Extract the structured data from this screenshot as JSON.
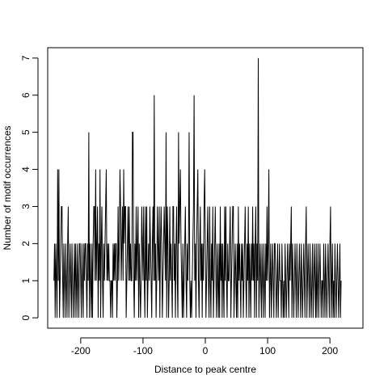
{
  "chart_data": {
    "type": "line",
    "title": "",
    "xlabel": "Distance to peak centre",
    "ylabel": "Number of motif occurrences",
    "xlim": [
      -253,
      253
    ],
    "ylim": [
      -0.28,
      7.28
    ],
    "x_ticks": [
      -200,
      -100,
      0,
      100,
      200
    ],
    "x_tick_labels": [
      "-200",
      "-100",
      "0",
      "100",
      "200"
    ],
    "y_ticks": [
      0,
      1,
      2,
      3,
      4,
      5,
      6,
      7
    ],
    "y_tick_labels": [
      "0",
      "1",
      "2",
      "3",
      "4",
      "5",
      "6",
      "7"
    ],
    "grid": false,
    "legend": "none",
    "line_color": "#000000",
    "x_start": -243,
    "x_step": 1,
    "series": [
      {
        "values": [
          1,
          2,
          0,
          2,
          1,
          0,
          4,
          1,
          4,
          0,
          1,
          2,
          3,
          3,
          1,
          0,
          2,
          1,
          0,
          2,
          1,
          0,
          2,
          3,
          0,
          1,
          2,
          1,
          0,
          2,
          1,
          0,
          1,
          2,
          0,
          2,
          1,
          0,
          2,
          1,
          0,
          2,
          2,
          1,
          0,
          2,
          1,
          0,
          2,
          1,
          2,
          2,
          1,
          0,
          2,
          1,
          5,
          0,
          2,
          1,
          0,
          2,
          0,
          2,
          3,
          3,
          1,
          4,
          1,
          2,
          3,
          0,
          2,
          1,
          4,
          0,
          2,
          3,
          1,
          0,
          2,
          1,
          2,
          3,
          4,
          1,
          2,
          1,
          2,
          1,
          1,
          0,
          1,
          1,
          0,
          2,
          1,
          2,
          1,
          2,
          2,
          0,
          1,
          3,
          1,
          2,
          4,
          3,
          1,
          2,
          3,
          1,
          4,
          2,
          3,
          3,
          0,
          1,
          2,
          3,
          1,
          3,
          1,
          2,
          1,
          1,
          5,
          5,
          1,
          0,
          2,
          1,
          3,
          1,
          2,
          3,
          0,
          2,
          1,
          0,
          1,
          3,
          2,
          1,
          3,
          1,
          0,
          3,
          1,
          3,
          0,
          1,
          2,
          1,
          3,
          2,
          1,
          0,
          2,
          3,
          1,
          6,
          1,
          2,
          0,
          1,
          3,
          2,
          1,
          3,
          0,
          2,
          3,
          2,
          0,
          1,
          2,
          3,
          2,
          1,
          5,
          0,
          3,
          2,
          0,
          1,
          3,
          1,
          2,
          1,
          0,
          3,
          3,
          1,
          2,
          0,
          2,
          3,
          1,
          0,
          5,
          2,
          3,
          4,
          2,
          1,
          0,
          2,
          0,
          1,
          2,
          3,
          1,
          0,
          2,
          1,
          2,
          5,
          1,
          0,
          1,
          0,
          1,
          2,
          3,
          6,
          1,
          2,
          0,
          2,
          3,
          4,
          1,
          0,
          2,
          3,
          1,
          2,
          0,
          2,
          1,
          3,
          4,
          2,
          0,
          1,
          2,
          3,
          1,
          0,
          3,
          1,
          0,
          2,
          1,
          3,
          0,
          1,
          2,
          3,
          1,
          0,
          2,
          1,
          0,
          2,
          0,
          3,
          1,
          2,
          0,
          2,
          1,
          0,
          3,
          1,
          3,
          1,
          0,
          2,
          1,
          1,
          2,
          3,
          0,
          1,
          2,
          3,
          3,
          0,
          1,
          2,
          1,
          0,
          2,
          0,
          3,
          1,
          2,
          1,
          0,
          2,
          1,
          2,
          0,
          1,
          2,
          3,
          1,
          0,
          2,
          1,
          3,
          0,
          2,
          1,
          0,
          2,
          1,
          3,
          1,
          2,
          0,
          2,
          3,
          0,
          2,
          1,
          7,
          0,
          1,
          2,
          1,
          0,
          2,
          1,
          0,
          2,
          1,
          0,
          2,
          1,
          3,
          1,
          2,
          4,
          0,
          1,
          2,
          0,
          1,
          2,
          1,
          0,
          2,
          2,
          1,
          0,
          1,
          2,
          0,
          1,
          2,
          1,
          1,
          0,
          2,
          1,
          0,
          1,
          0,
          2,
          1,
          0,
          1,
          2,
          1,
          0,
          2,
          1,
          2,
          3,
          0,
          2,
          1,
          0,
          1,
          2,
          1,
          0,
          2,
          1,
          0,
          1,
          2,
          1,
          0,
          2,
          1,
          0,
          1,
          2,
          1,
          0,
          2,
          3,
          0,
          1,
          2,
          1,
          0,
          2,
          1,
          0,
          1,
          2,
          0,
          1,
          2,
          1,
          0,
          2,
          0,
          1,
          2,
          0,
          1,
          2,
          1,
          0,
          1,
          1,
          0,
          2,
          1,
          0,
          2,
          1,
          0,
          1,
          2,
          1,
          0,
          2,
          3,
          0,
          1,
          2,
          0,
          1,
          0,
          2,
          1,
          0,
          1,
          2,
          1,
          0,
          1,
          2,
          0,
          1
        ]
      }
    ]
  }
}
